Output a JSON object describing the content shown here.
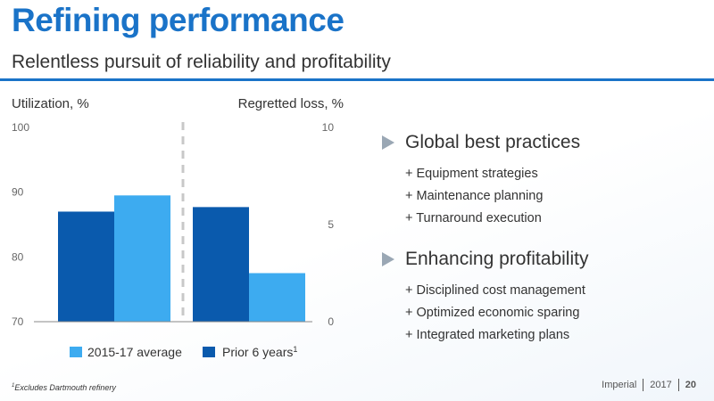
{
  "header": {
    "title": "Refining performance",
    "subtitle": "Relentless pursuit of reliability and profitability"
  },
  "colors": {
    "accent": "#1a73c8",
    "series_light": "#3dabf0",
    "series_dark": "#0a5aad",
    "divider": "#c8c8c8"
  },
  "chart_data": [
    {
      "type": "bar",
      "ylabel": "Utilization, %",
      "ylim": [
        70,
        100
      ],
      "yticks": [
        "70",
        "80",
        "90",
        "100"
      ],
      "series": [
        {
          "name": "Prior 6 years",
          "values": [
            87
          ]
        },
        {
          "name": "2015-17 average",
          "values": [
            89.5
          ]
        }
      ]
    },
    {
      "type": "bar",
      "ylabel": "Regretted loss, %",
      "ylim": [
        0,
        10
      ],
      "yticks": [
        "0",
        "5",
        "10"
      ],
      "series": [
        {
          "name": "Prior 6 years",
          "values": [
            5.9
          ]
        },
        {
          "name": "2015-17 average",
          "values": [
            2.5
          ]
        }
      ]
    }
  ],
  "legend": {
    "items": [
      {
        "label": "2015-17 average",
        "color": "#3dabf0"
      },
      {
        "label": "Prior 6 years",
        "sup": "1",
        "color": "#0a5aad"
      }
    ]
  },
  "bullets": [
    {
      "heading": "Global best practices",
      "items": [
        "+ Equipment strategies",
        "+ Maintenance planning",
        "+ Turnaround execution"
      ]
    },
    {
      "heading": "Enhancing profitability",
      "items": [
        "+ Disciplined cost management",
        "+ Optimized economic sparing",
        "+ Integrated marketing plans"
      ]
    }
  ],
  "footnote": {
    "sup": "1",
    "text": "Excludes Dartmouth refinery"
  },
  "footer": {
    "brand": "Imperial",
    "year": "2017",
    "page": "20"
  }
}
